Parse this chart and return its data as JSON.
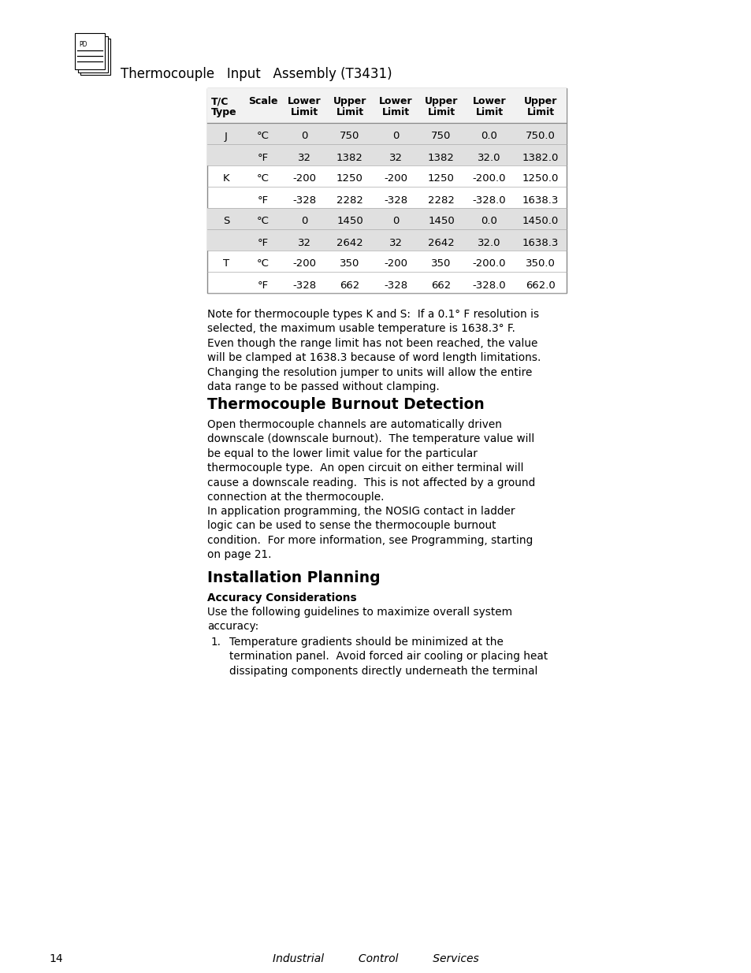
{
  "page_bg": "#ffffff",
  "header_title": "Thermocouple   Input   Assembly (T3431)",
  "table_headers_row1": [
    "T/C",
    "Scale",
    "Lower",
    "Upper",
    "Lower",
    "Upper",
    "Lower",
    "Upper"
  ],
  "table_headers_row2": [
    "Type",
    "",
    "Limit",
    "Limit",
    "Limit",
    "Limit",
    "Limit",
    "Limit"
  ],
  "table_data": [
    [
      "J",
      "°C",
      "0",
      "750",
      "0",
      "750",
      "0.0",
      "750.0"
    ],
    [
      "",
      "°F",
      "32",
      "1382",
      "32",
      "1382",
      "32.0",
      "1382.0"
    ],
    [
      "K",
      "°C",
      "-200",
      "1250",
      "-200",
      "1250",
      "-200.0",
      "1250.0"
    ],
    [
      "",
      "°F",
      "-328",
      "2282",
      "-328",
      "2282",
      "-328.0",
      "1638.3"
    ],
    [
      "S",
      "°C",
      "0",
      "1450",
      "0",
      "1450",
      "0.0",
      "1450.0"
    ],
    [
      "",
      "°F",
      "32",
      "2642",
      "32",
      "2642",
      "32.0",
      "1638.3"
    ],
    [
      "T",
      "°C",
      "-200",
      "350",
      "-200",
      "350",
      "-200.0",
      "350.0"
    ],
    [
      "",
      "°F",
      "-328",
      "662",
      "-328",
      "662",
      "-328.0",
      "662.0"
    ]
  ],
  "note_text": "Note for thermocouple types K and S:  If a 0.1° F resolution is\nselected, the maximum usable temperature is 1638.3° F.\nEven though the range limit has not been reached, the value\nwill be clamped at 1638.3 because of word length limitations.\nChanging the resolution jumper to units will allow the entire\ndata range to be passed without clamping.",
  "section1_title": "Thermocouple Burnout Detection",
  "section1_para1": "Open thermocouple channels are automatically driven\ndownscale (downscale burnout).  The temperature value will\nbe equal to the lower limit value for the particular\nthermocouple type.  An open circuit on either terminal will\ncause a downscale reading.  This is not affected by a ground\nconnection at the thermocouple.",
  "section1_para2": "In application programming, the NOSIG contact in ladder\nlogic can be used to sense the thermocouple burnout\ncondition.  For more information, see Programming, starting\non page 21.",
  "section2_title": "Installation Planning",
  "section2_sub": "Accuracy Considerations",
  "section2_para1": "Use the following guidelines to maximize overall system\naccuracy:",
  "section2_list1": "Temperature gradients should be minimized at the\ntermination panel.  Avoid forced air cooling or placing heat\ndissipating components directly underneath the terminal",
  "footer_page": "14",
  "footer_right": "Industrial          Control          Services",
  "row_shaded": [
    0,
    1,
    4,
    5
  ],
  "shade_color": "#e0e0e0",
  "table_border_color": "#888888",
  "table_line_color": "#aaaaaa"
}
